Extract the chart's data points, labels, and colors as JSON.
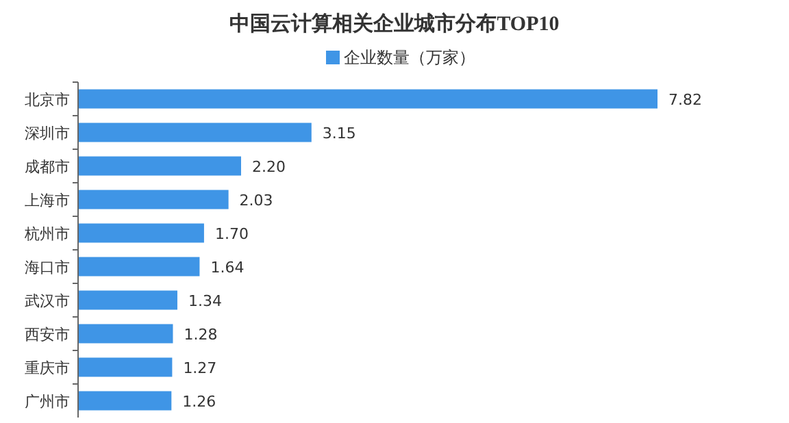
{
  "chart_data": {
    "type": "bar",
    "orientation": "horizontal",
    "title": "中国云计算相关企业城市分布TOP10",
    "categories": [
      "北京市",
      "深圳市",
      "成都市",
      "上海市",
      "杭州市",
      "海口市",
      "武汉市",
      "西安市",
      "重庆市",
      "广州市"
    ],
    "series": [
      {
        "name": "企业数量（万家）",
        "color": "#3f95e6",
        "values": [
          7.82,
          3.15,
          2.2,
          2.03,
          1.7,
          1.64,
          1.34,
          1.28,
          1.27,
          1.26
        ],
        "value_labels": [
          "7.82",
          "3.15",
          "2.20",
          "2.03",
          "1.70",
          "1.64",
          "1.34",
          "1.28",
          "1.27",
          "1.26"
        ]
      }
    ],
    "legend": "top"
  }
}
